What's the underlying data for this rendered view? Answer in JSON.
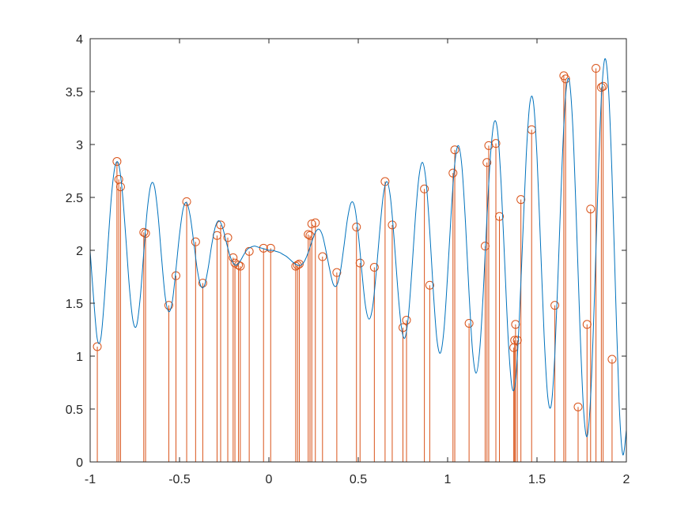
{
  "chart_data": {
    "type": "line",
    "title": "",
    "xlabel": "",
    "ylabel": "",
    "xlim": [
      -1,
      2
    ],
    "ylim": [
      0,
      4
    ],
    "grid": false,
    "x_ticks": [
      -1,
      -0.5,
      0,
      0.5,
      1,
      1.5,
      2
    ],
    "x_tick_labels": [
      "-1",
      "-0.5",
      "0",
      "0.5",
      "1",
      "1.5",
      "2"
    ],
    "y_ticks": [
      0,
      0.5,
      1,
      1.5,
      2,
      2.5,
      3,
      3.5,
      4
    ],
    "y_tick_labels": [
      "0",
      "0.5",
      "1",
      "1.5",
      "2",
      "2.5",
      "3",
      "3.5",
      "4"
    ],
    "colors": {
      "curve": "#0072BD",
      "samples": "#D95319",
      "axes": "#262626"
    },
    "series": [
      {
        "kind": "line",
        "x": [
          -1.0,
          -0.98,
          -0.96,
          -0.94,
          -0.92,
          -0.9,
          -0.88,
          -0.86,
          -0.84,
          -0.82,
          -0.8,
          -0.78,
          -0.76,
          -0.74,
          -0.72,
          -0.7,
          -0.68,
          -0.66,
          -0.64,
          -0.62,
          -0.6,
          -0.58,
          -0.56,
          -0.54,
          -0.52,
          -0.5,
          -0.48,
          -0.46,
          -0.44,
          -0.42,
          -0.4,
          -0.38,
          -0.36,
          -0.34,
          -0.32,
          -0.3,
          -0.28,
          -0.26,
          -0.24,
          -0.22,
          -0.2,
          -0.18,
          -0.16,
          -0.14,
          -0.12,
          -0.1,
          -0.08,
          -0.06,
          -0.04,
          -0.02,
          0.0,
          0.02,
          0.04,
          0.06,
          0.08,
          0.1,
          0.12,
          0.14,
          0.16,
          0.18,
          0.2,
          0.22,
          0.24,
          0.26,
          0.28,
          0.3,
          0.32,
          0.34,
          0.36,
          0.38,
          0.4,
          0.42,
          0.44,
          0.46,
          0.48,
          0.5,
          0.52,
          0.54,
          0.56,
          0.58,
          0.6,
          0.62,
          0.64,
          0.66,
          0.68,
          0.7,
          0.72,
          0.74,
          0.76,
          0.78,
          0.8,
          0.82,
          0.84,
          0.86,
          0.88,
          0.9,
          0.92,
          0.94,
          0.96,
          0.98,
          1.0,
          1.02,
          1.04,
          1.06,
          1.08,
          1.1,
          1.12,
          1.14,
          1.16,
          1.18,
          1.2,
          1.22,
          1.24,
          1.26,
          1.28,
          1.3,
          1.32,
          1.34,
          1.36,
          1.38,
          1.4,
          1.42,
          1.44,
          1.46,
          1.48,
          1.5,
          1.52,
          1.54,
          1.56,
          1.58,
          1.6,
          1.62,
          1.64,
          1.66,
          1.68,
          1.7,
          1.72,
          1.74,
          1.76,
          1.78,
          1.8,
          1.82,
          1.84,
          1.86,
          1.88,
          1.9,
          1.92,
          1.94,
          1.96,
          1.98,
          2.0
        ],
        "y": [
          1.99,
          1.53,
          1.16,
          1.17,
          1.55,
          2.06,
          2.53,
          2.8,
          2.81,
          2.55,
          2.11,
          1.64,
          1.33,
          1.29,
          1.55,
          1.98,
          2.39,
          2.62,
          2.6,
          2.33,
          1.92,
          1.56,
          1.42,
          1.52,
          1.82,
          2.15,
          2.39,
          2.45,
          2.32,
          2.07,
          1.81,
          1.66,
          1.67,
          1.83,
          2.05,
          2.22,
          2.28,
          2.22,
          2.09,
          1.96,
          1.88,
          1.86,
          1.9,
          1.96,
          2.01,
          2.03,
          2.04,
          2.03,
          2.02,
          2.01,
          2.0,
          2.0,
          1.99,
          1.98,
          1.96,
          1.94,
          1.91,
          1.88,
          1.86,
          1.86,
          1.9,
          1.98,
          2.08,
          2.17,
          2.2,
          2.14,
          1.99,
          1.82,
          1.68,
          1.67,
          1.8,
          2.04,
          2.3,
          2.45,
          2.41,
          2.16,
          1.8,
          1.48,
          1.35,
          1.46,
          1.78,
          2.18,
          2.52,
          2.65,
          2.5,
          2.12,
          1.66,
          1.29,
          1.17,
          1.37,
          1.81,
          2.32,
          2.7,
          2.83,
          2.64,
          2.18,
          1.61,
          1.16,
          1.03,
          1.26,
          1.77,
          2.36,
          2.82,
          2.99,
          2.79,
          2.26,
          1.59,
          1.04,
          0.84,
          1.07,
          1.62,
          2.31,
          2.9,
          3.21,
          3.12,
          2.61,
          1.86,
          1.13,
          0.71,
          0.76,
          1.31,
          2.11,
          2.9,
          3.39,
          3.4,
          2.89,
          2.05,
          1.19,
          0.62,
          0.54,
          1.02,
          1.87,
          2.8,
          3.46,
          3.61,
          3.18,
          2.3,
          1.29,
          0.51,
          0.24,
          0.61,
          1.48,
          2.55,
          3.43,
          3.81,
          3.53,
          2.7,
          1.57,
          0.54,
          0.07,
          0.3
        ]
      },
      {
        "kind": "stem",
        "x": [
          -0.96,
          -0.85,
          -0.84,
          -0.83,
          -0.7,
          -0.69,
          -0.56,
          -0.52,
          -0.46,
          -0.41,
          -0.37,
          -0.29,
          -0.27,
          -0.23,
          -0.2,
          -0.19,
          -0.17,
          -0.16,
          -0.11,
          -0.03,
          0.01,
          0.15,
          0.16,
          0.17,
          0.22,
          0.23,
          0.24,
          0.26,
          0.3,
          0.38,
          0.49,
          0.51,
          0.59,
          0.65,
          0.69,
          0.75,
          0.77,
          0.87,
          0.9,
          1.03,
          1.04,
          1.12,
          1.21,
          1.22,
          1.23,
          1.27,
          1.29,
          1.37,
          1.375,
          1.38,
          1.39,
          1.41,
          1.47,
          1.6,
          1.65,
          1.66,
          1.73,
          1.78,
          1.8,
          1.83,
          1.86,
          1.87,
          1.92
        ],
        "y": [
          1.09,
          2.84,
          2.67,
          2.6,
          2.17,
          2.16,
          1.48,
          1.76,
          2.46,
          2.08,
          1.69,
          2.14,
          2.24,
          2.12,
          1.93,
          1.88,
          1.86,
          1.85,
          1.99,
          2.02,
          2.02,
          1.85,
          1.86,
          1.87,
          2.15,
          2.14,
          2.25,
          2.26,
          1.94,
          1.79,
          2.22,
          1.88,
          1.84,
          2.65,
          2.24,
          1.27,
          1.34,
          2.58,
          1.67,
          2.73,
          2.95,
          1.31,
          2.04,
          2.83,
          2.99,
          3.01,
          2.32,
          1.08,
          1.15,
          1.3,
          1.15,
          2.48,
          3.14,
          1.48,
          3.65,
          3.62,
          0.52,
          1.3,
          2.39,
          3.72,
          3.54,
          3.55,
          0.97
        ]
      }
    ]
  }
}
